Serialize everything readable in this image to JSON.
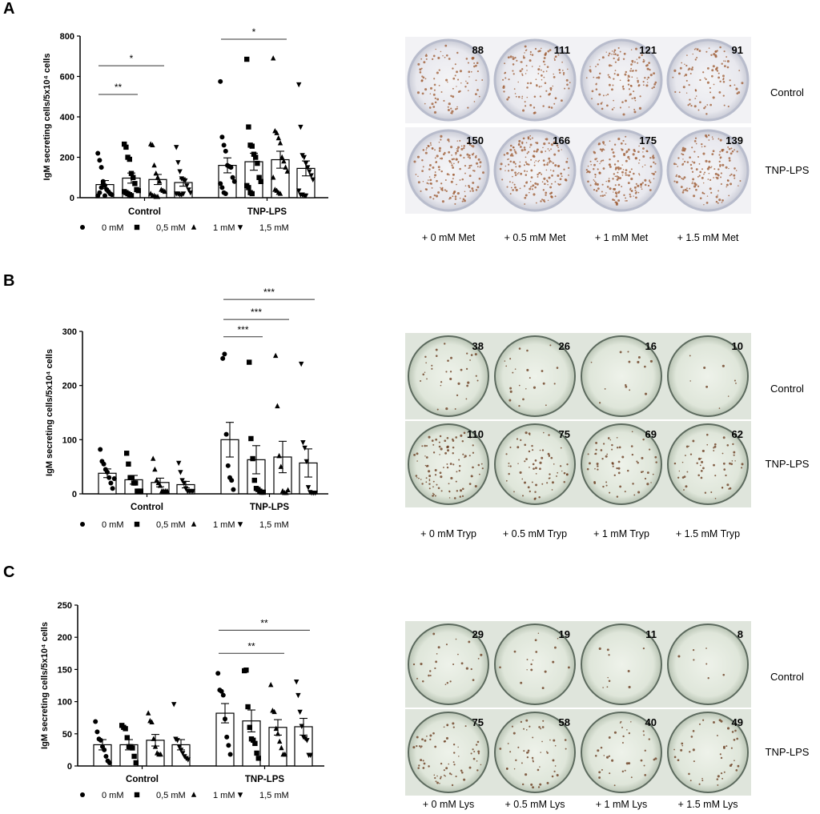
{
  "panels": [
    {
      "label": "A",
      "chart_data": {
        "type": "bar",
        "ylabel": "IgM secreting cells/5x10⁴ cells",
        "ylim": [
          0,
          800
        ],
        "yticks": [
          0,
          200,
          400,
          600,
          800
        ],
        "groups": [
          "Control",
          "TNP-LPS"
        ],
        "legend": [
          "0 mM",
          "0,5 mM",
          "1 mM",
          "1,5 mM"
        ],
        "series": [
          {
            "group": "Control",
            "conc": "0 mM",
            "mean": 65,
            "sem": 20,
            "points": [
              220,
              185,
              150,
              80,
              60,
              40,
              30,
              20,
              15,
              10,
              25,
              50,
              70,
              10
            ]
          },
          {
            "group": "Control",
            "conc": "0,5 mM",
            "mean": 97,
            "sem": 25,
            "points": [
              265,
              250,
              200,
              190,
              120,
              100,
              70,
              40,
              35,
              30,
              25,
              20,
              15,
              10
            ]
          },
          {
            "group": "Control",
            "conc": "1 mM",
            "mean": 90,
            "sem": 25,
            "points": [
              265,
              260,
              160,
              120,
              100,
              80,
              40,
              35,
              30,
              20,
              10,
              10,
              5,
              5
            ]
          },
          {
            "group": "Control",
            "conc": "1,5 mM",
            "mean": 75,
            "sem": 18,
            "points": [
              250,
              175,
              130,
              95,
              90,
              85,
              60,
              40,
              25,
              20,
              20,
              15,
              15,
              20
            ]
          },
          {
            "group": "TNP-LPS",
            "conc": "0 mM",
            "mean": 160,
            "sem": 37,
            "points": [
              575,
              300,
              260,
              230,
              160,
              155,
              150,
              100,
              80,
              70,
              50,
              25,
              20
            ]
          },
          {
            "group": "TNP-LPS",
            "conc": "0,5 mM",
            "mean": 178,
            "sem": 42,
            "points": [
              685,
              350,
              260,
              255,
              215,
              200,
              170,
              100,
              80,
              60,
              50,
              25,
              20
            ]
          },
          {
            "group": "TNP-LPS",
            "conc": "1 mM",
            "mean": 188,
            "sem": 42,
            "points": [
              690,
              330,
              320,
              295,
              270,
              200,
              180,
              150,
              130,
              100,
              40,
              35,
              25,
              20
            ]
          },
          {
            "group": "TNP-LPS",
            "conc": "1,5 mM",
            "mean": 145,
            "sem": 37,
            "points": [
              560,
              350,
              210,
              200,
              170,
              150,
              130,
              110,
              90,
              35,
              15,
              15,
              10,
              10
            ]
          }
        ],
        "significance": [
          {
            "from": 0,
            "to": 1,
            "y": 511,
            "label": "**"
          },
          {
            "from": 0,
            "to": 2,
            "y": 653,
            "label": "*"
          },
          {
            "from": 4,
            "to": 6,
            "y": 784,
            "label": "*"
          }
        ]
      },
      "wells": {
        "style": "grey",
        "rows": [
          "Control",
          "TNP-LPS"
        ],
        "columns": [
          "+ 0 mM Met",
          "+ 0.5 mM Met",
          "+ 1 mM Met",
          "+ 1.5 mM Met"
        ],
        "counts": [
          [
            88,
            111,
            121,
            91
          ],
          [
            150,
            166,
            175,
            139
          ]
        ]
      }
    },
    {
      "label": "B",
      "chart_data": {
        "type": "bar",
        "ylabel": "IgM secreting cells/5x10⁴ cells",
        "ylim": [
          0,
          300
        ],
        "yticks": [
          0,
          100,
          200,
          300
        ],
        "groups": [
          "Control",
          "TNP-LPS"
        ],
        "legend": [
          "0 mM",
          "0,5 mM",
          "1 mM",
          "1,5 mM"
        ],
        "series": [
          {
            "group": "Control",
            "conc": "0 mM",
            "mean": 38,
            "sem": 8,
            "points": [
              82,
              60,
              55,
              45,
              40,
              30,
              20,
              10,
              28
            ]
          },
          {
            "group": "Control",
            "conc": "0,5 mM",
            "mean": 26,
            "sem": 8,
            "points": [
              75,
              55,
              30,
              30,
              20,
              20,
              5,
              5,
              5
            ]
          },
          {
            "group": "Control",
            "conc": "1 mM",
            "mean": 21,
            "sem": 8,
            "points": [
              65,
              45,
              25,
              20,
              15,
              5,
              5,
              5,
              5
            ]
          },
          {
            "group": "Control",
            "conc": "1,5 mM",
            "mean": 17,
            "sem": 6,
            "points": [
              57,
              40,
              25,
              20,
              10,
              5,
              5,
              5,
              5
            ]
          },
          {
            "group": "TNP-LPS",
            "conc": "0 mM",
            "mean": 100,
            "sem": 32,
            "points": [
              250,
              258,
              110,
              52,
              30,
              25,
              8
            ]
          },
          {
            "group": "TNP-LPS",
            "conc": "0,5 mM",
            "mean": 63,
            "sem": 26,
            "points": [
              243,
              102,
              65,
              25,
              10,
              8,
              5,
              3,
              3
            ]
          },
          {
            "group": "TNP-LPS",
            "conc": "1 mM",
            "mean": 68,
            "sem": 29,
            "points": [
              255,
              162,
              70,
              50,
              5,
              2,
              2,
              7
            ]
          },
          {
            "group": "TNP-LPS",
            "conc": "1,5 mM",
            "mean": 57,
            "sem": 26,
            "points": [
              240,
              95,
              85,
              60,
              12,
              3,
              2,
              2,
              2
            ]
          }
        ],
        "significance": [
          {
            "from": 4,
            "to": 5,
            "y": 290,
            "label": "***"
          },
          {
            "from": 4,
            "to": 6,
            "y": 322,
            "label": "***"
          },
          {
            "from": 4,
            "to": 7,
            "y": 359,
            "label": "***"
          }
        ]
      },
      "wells": {
        "style": "green",
        "rows": [
          "Control",
          "TNP-LPS"
        ],
        "columns": [
          "+ 0 mM Tryp",
          "+ 0.5 mM Tryp",
          "+ 1 mM Tryp",
          "+ 1.5 mM Tryp"
        ],
        "counts": [
          [
            38,
            26,
            16,
            10
          ],
          [
            110,
            75,
            69,
            62
          ]
        ]
      }
    },
    {
      "label": "C",
      "chart_data": {
        "type": "bar",
        "ylabel": "IgM secreting cells/5x10⁴ cells",
        "ylim": [
          0,
          250
        ],
        "yticks": [
          0,
          50,
          100,
          150,
          200,
          250
        ],
        "groups": [
          "Control",
          "TNP-LPS"
        ],
        "legend": [
          "0 mM",
          "0,5 mM",
          "1 mM",
          "1,5 mM"
        ],
        "series": [
          {
            "group": "Control",
            "conc": "0 mM",
            "mean": 33,
            "sem": 8,
            "points": [
              69,
              53,
              42,
              40,
              30,
              25,
              15,
              8,
              5
            ]
          },
          {
            "group": "Control",
            "conc": "0,5 mM",
            "mean": 33,
            "sem": 8,
            "points": [
              63,
              60,
              58,
              44,
              30,
              30,
              28,
              15,
              5
            ]
          },
          {
            "group": "Control",
            "conc": "1 mM",
            "mean": 40,
            "sem": 9,
            "points": [
              82,
              70,
              68,
              42,
              30,
              20,
              18,
              18
            ]
          },
          {
            "group": "Control",
            "conc": "1,5 mM",
            "mean": 33,
            "sem": 8,
            "points": [
              96,
              42,
              40,
              30,
              25,
              20,
              15,
              12,
              10
            ]
          },
          {
            "group": "TNP-LPS",
            "conc": "0 mM",
            "mean": 82,
            "sem": 15,
            "points": [
              144,
              118,
              116,
              110,
              73,
              45,
              32,
              18
            ]
          },
          {
            "group": "TNP-LPS",
            "conc": "0,5 mM",
            "mean": 70,
            "sem": 17,
            "points": [
              148,
              149,
              92,
              60,
              42,
              40,
              35,
              20,
              12
            ]
          },
          {
            "group": "TNP-LPS",
            "conc": "1 mM",
            "mean": 60,
            "sem": 12,
            "points": [
              126,
              86,
              84,
              58,
              50,
              38,
              28,
              18,
              18
            ]
          },
          {
            "group": "TNP-LPS",
            "conc": "1,5 mM",
            "mean": 61,
            "sem": 13,
            "points": [
              131,
              110,
              84,
              62,
              45,
              43,
              40,
              17,
              17
            ]
          }
        ],
        "significance": [
          {
            "from": 4,
            "to": 6,
            "y": 175,
            "label": "**"
          },
          {
            "from": 4,
            "to": 7,
            "y": 211,
            "label": "**"
          }
        ]
      },
      "wells": {
        "style": "green",
        "rows": [
          "Control",
          "TNP-LPS"
        ],
        "columns": [
          "+ 0 mM Lys",
          "+ 0.5 mM Lys",
          "+ 1 mM Lys",
          "+ 1.5 mM Lys"
        ],
        "counts": [
          [
            29,
            19,
            11,
            8
          ],
          [
            75,
            58,
            40,
            49
          ]
        ]
      }
    }
  ]
}
